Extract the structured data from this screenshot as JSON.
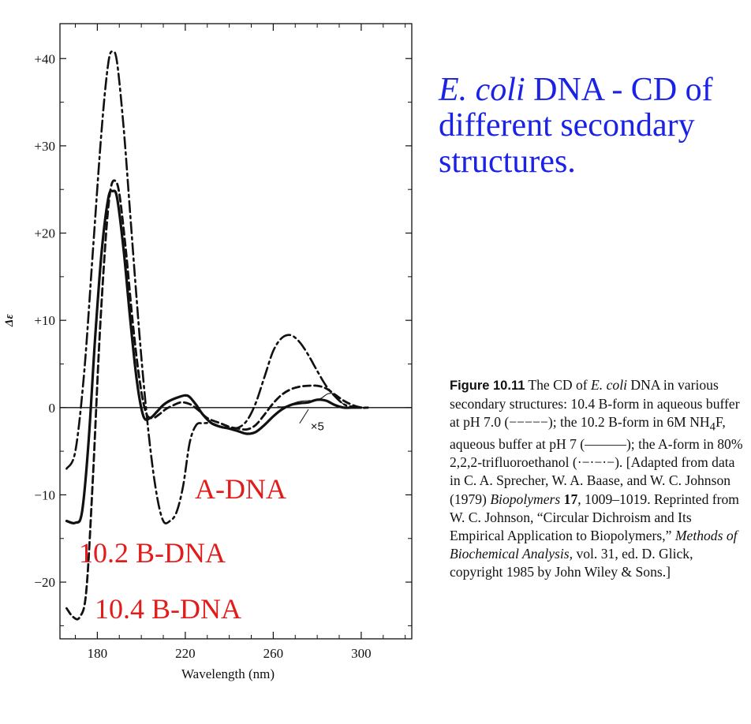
{
  "title": {
    "italic": "E. coli",
    "rest": " DNA - CD of different secondary structures."
  },
  "chart_data": {
    "type": "line",
    "xlabel": "Wavelength (nm)",
    "ylabel": "Δε",
    "xlim": [
      163,
      323
    ],
    "ylim": [
      -26.5,
      44
    ],
    "xticks": [
      180,
      220,
      260,
      300
    ],
    "xtick_labels": [
      "180",
      "220",
      "260",
      "300"
    ],
    "yticks": [
      -20,
      -10,
      0,
      10,
      20,
      30,
      40
    ],
    "ytick_labels": [
      "−20",
      "−10",
      "0",
      "+10",
      "+20",
      "+30",
      "+40"
    ],
    "annotation": "×5",
    "series": [
      {
        "name": "A-DNA",
        "style": "dash-dot",
        "x": [
          166,
          170,
          174,
          178,
          182,
          185,
          187,
          189,
          192,
          195,
          198,
          201,
          204,
          207,
          210,
          213,
          216,
          219,
          222,
          225,
          228,
          232,
          236,
          240,
          244,
          248,
          252,
          256,
          260,
          264,
          268,
          272,
          276,
          280,
          284,
          288,
          292,
          296,
          300,
          303
        ],
        "y": [
          -7,
          -5,
          4,
          18,
          32,
          39.5,
          40.8,
          39.5,
          32,
          22,
          12,
          3,
          -4.5,
          -10,
          -13,
          -13,
          -12,
          -9,
          -4,
          -2,
          -1.8,
          -1.8,
          -2.2,
          -2.3,
          -2.3,
          -1.5,
          0.5,
          3.5,
          6.5,
          8,
          8.3,
          7.5,
          6,
          4.2,
          2.5,
          1.3,
          0.4,
          0.1,
          0,
          0
        ]
      },
      {
        "name": "10.2 B-DNA",
        "style": "solid",
        "x": [
          166,
          170,
          173,
          176,
          179,
          182,
          185,
          187,
          189,
          192,
          195,
          198,
          201,
          204,
          207,
          210,
          213,
          217,
          220,
          222,
          225,
          228,
          232,
          236,
          240,
          244,
          248,
          252,
          256,
          260,
          264,
          268,
          272,
          276,
          280,
          284,
          288,
          292,
          296,
          300
        ],
        "y": [
          -13,
          -13.2,
          -12,
          -4,
          8,
          18,
          24,
          24.8,
          24,
          18,
          10,
          3,
          -1,
          -1.2,
          -0.5,
          0.3,
          0.8,
          1.2,
          1.4,
          1.2,
          0.3,
          -0.8,
          -1.8,
          -2.2,
          -2.4,
          -2.7,
          -3,
          -2.8,
          -2,
          -1,
          -0.2,
          0.3,
          0.5,
          0.6,
          0.9,
          0.8,
          0.3,
          0,
          0,
          0
        ]
      },
      {
        "name": "10.4 B-DNA",
        "style": "dashed",
        "x": [
          166,
          169,
          172,
          175,
          178,
          181,
          184,
          186,
          188,
          190,
          193,
          196,
          199,
          202,
          205,
          208,
          211,
          214,
          218,
          222,
          226,
          230,
          236,
          240,
          244,
          248,
          252,
          256,
          260,
          264,
          268,
          272,
          276,
          280,
          284,
          288,
          292,
          296,
          300,
          303
        ],
        "y": [
          -23,
          -24,
          -24,
          -21,
          -8,
          8,
          20,
          25,
          26,
          24.5,
          18,
          10,
          3.5,
          -0.5,
          -1.2,
          -0.8,
          -0.2,
          0.2,
          0.6,
          0.4,
          -0.3,
          -1.2,
          -1.8,
          -2.2,
          -2.4,
          -2.5,
          -2,
          -0.8,
          0.5,
          1.5,
          2.1,
          2.4,
          2.5,
          2.5,
          2.2,
          1.5,
          0.8,
          0.3,
          0,
          0
        ]
      },
      {
        "name": "×5 segment",
        "style": "thin",
        "x": [
          262,
          265,
          268,
          272,
          276,
          279,
          282,
          285,
          288,
          291,
          294
        ],
        "y": [
          0.1,
          0.1,
          0.4,
          0.7,
          0.8,
          0.8,
          1.1,
          1.6,
          1.5,
          0.6,
          0
        ]
      }
    ]
  },
  "caption": {
    "figure_label": "Figure 10.11",
    "line1": "The CD of ",
    "line1_italic": "E. coli",
    "body_a": " DNA in various secondary structures: 10.4 B-form in aqueous buffer at pH 7.0 (−−−−−); the 10.2 B-form in 6M NH",
    "sub4": "4",
    "body_b": "F, aqueous buffer at pH 7 (———); the A-form in 80% 2,2,2-trifluoroethanol (·−·−·−). [Adapted from data in C. A. Sprecher, W. A. Baase, and W. C. Johnson (1979) ",
    "journal": "Biopolymers",
    "volume": " 17",
    "body_c": ", 1009–1019. Reprinted from W. C. Johnson, “Circular Dichroism and Its Empirical Application to Biopolymers,” ",
    "book": "Methods of Biochemical Analysis,",
    "body_d": " vol. 31, ed. D. Glick, copyright 1985 by John Wiley & Sons.]"
  },
  "colors": {
    "title": "#1a22e6",
    "series_label": "#e21b1b",
    "ink": "#111111"
  }
}
